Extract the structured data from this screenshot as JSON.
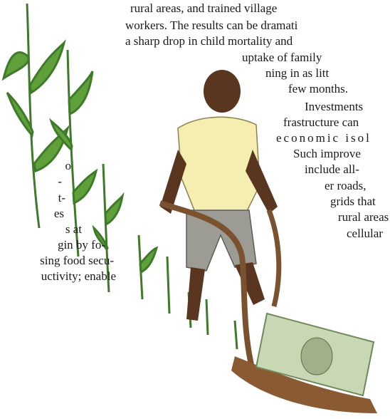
{
  "left_column": {
    "lines": [
      "o",
      "-",
      "t-",
      "es",
      "s at",
      "gin by fo-",
      "sing food secu-",
      "uctivity; enable"
    ]
  },
  "right_column": {
    "lines": [
      "rural areas, and trained village",
      "workers. The results can be dramati",
      "a sharp drop in child mortality and",
      "uptake of family",
      "ning in as litt",
      "few months.",
      "Investments",
      "frastructure can",
      "economic isol",
      "Such improve",
      "include all-",
      "er roads,",
      "grids that",
      "rural areas",
      "cellular"
    ]
  }
}
